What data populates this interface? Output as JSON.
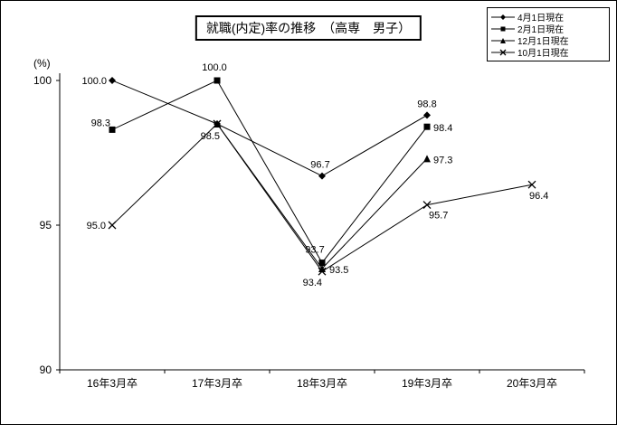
{
  "colors": {
    "foreground": "#000000",
    "background": "#ffffff"
  },
  "chart_data": {
    "type": "line",
    "title": "就職(内定)率の推移　（高専　男子）",
    "ylabel": "(%)",
    "ylim": [
      90,
      100
    ],
    "yticks": [
      100,
      95,
      90
    ],
    "grid": false,
    "legend_position": "top-right",
    "categories": [
      "16年3月卒",
      "17年3月卒",
      "18年3月卒",
      "19年3月卒",
      "20年3月卒"
    ],
    "series": [
      {
        "name": "4月1日現在",
        "marker": "diamond",
        "values": [
          100.0,
          98.5,
          96.7,
          98.8,
          null
        ],
        "labels": [
          {
            "i": 0,
            "dx": -6,
            "dy": 4,
            "anchor": "end"
          },
          {
            "i": 1,
            "dx": 3,
            "dy": 17,
            "anchor": "end"
          },
          {
            "i": 2,
            "dx": -2,
            "dy": -9,
            "anchor": "middle"
          },
          {
            "i": 3,
            "dx": 0,
            "dy": -9,
            "anchor": "middle"
          }
        ]
      },
      {
        "name": "2月1日現在",
        "marker": "square",
        "values": [
          98.3,
          100.0,
          93.7,
          98.4,
          null
        ],
        "labels": [
          {
            "i": 0,
            "dx": -2,
            "dy": -4,
            "anchor": "end"
          },
          {
            "i": 1,
            "dx": -3,
            "dy": -11,
            "anchor": "middle"
          },
          {
            "i": 2,
            "dx": -8,
            "dy": -11,
            "anchor": "middle"
          },
          {
            "i": 3,
            "dx": 7,
            "dy": 5,
            "anchor": "start"
          }
        ]
      },
      {
        "name": "12月1日現在",
        "marker": "triangle",
        "values": [
          null,
          98.5,
          93.5,
          97.3,
          null
        ],
        "labels": [
          {
            "i": 2,
            "dx": 8,
            "dy": 5,
            "anchor": "start"
          },
          {
            "i": 3,
            "dx": 7,
            "dy": 5,
            "anchor": "start"
          }
        ]
      },
      {
        "name": "10月1日現在",
        "marker": "x",
        "values": [
          95.0,
          98.5,
          93.4,
          95.7,
          96.4
        ],
        "labels": [
          {
            "i": 0,
            "dx": -7,
            "dy": 4,
            "anchor": "end"
          },
          {
            "i": 2,
            "dx": 0,
            "dy": 16,
            "anchor": "end"
          },
          {
            "i": 3,
            "dx": 2,
            "dy": 15,
            "anchor": "start"
          },
          {
            "i": 4,
            "dx": -3,
            "dy": 16,
            "anchor": "start"
          }
        ]
      }
    ]
  }
}
